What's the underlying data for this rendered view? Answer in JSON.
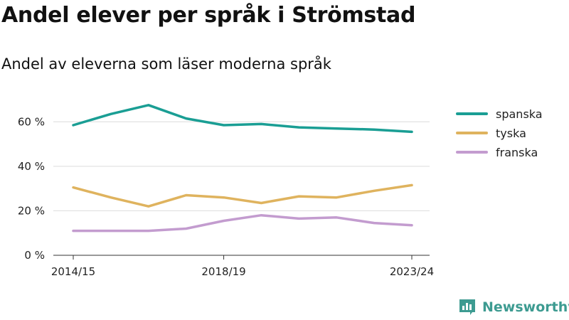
{
  "title": "Andel elever per språk i Strömstad",
  "subtitle": "Andel av eleverna som läser moderna språk",
  "brand": {
    "name": "Newsworthy"
  },
  "colors": {
    "spanska": "#1a9e94",
    "tyska": "#dfb35e",
    "franska": "#c39ccf",
    "brand": "#3d9b91"
  },
  "chart_data": {
    "type": "line",
    "title": "Andel elever per språk i Strömstad",
    "subtitle": "Andel av eleverna som läser moderna språk",
    "x": [
      "2014/15",
      "2015/16",
      "2016/17",
      "2017/18",
      "2018/19",
      "2019/20",
      "2020/21",
      "2021/22",
      "2022/23",
      "2023/24"
    ],
    "x_tick_labels": [
      "2014/15",
      "2018/19",
      "2023/24"
    ],
    "y_ticks": [
      0,
      20,
      40,
      60
    ],
    "y_tick_labels": [
      "0 %",
      "20 %",
      "40 %",
      "60 %"
    ],
    "ylim": [
      0,
      70
    ],
    "grid": true,
    "legend_position": "right",
    "series": [
      {
        "name": "spanska",
        "values": [
          58.5,
          63.5,
          67.5,
          61.5,
          58.5,
          59.0,
          57.5,
          57.0,
          56.5,
          55.5
        ]
      },
      {
        "name": "tyska",
        "values": [
          30.5,
          26.0,
          22.0,
          27.0,
          26.0,
          23.5,
          26.5,
          26.0,
          29.0,
          31.5
        ]
      },
      {
        "name": "franska",
        "values": [
          11.0,
          11.0,
          11.0,
          12.0,
          15.5,
          18.0,
          16.5,
          17.0,
          14.5,
          13.5
        ]
      }
    ]
  }
}
